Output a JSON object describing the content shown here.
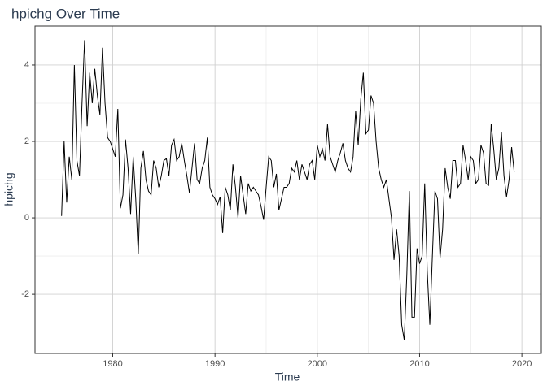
{
  "chart_data": {
    "type": "line",
    "title": "hpichg Over Time",
    "x_label": "Time",
    "y_label": "hpichg",
    "x": [
      1975,
      1975.25,
      1975.5,
      1975.75,
      1976,
      1976.25,
      1976.5,
      1976.75,
      1977,
      1977.25,
      1977.5,
      1977.75,
      1978,
      1978.25,
      1978.5,
      1978.75,
      1979,
      1979.25,
      1979.5,
      1979.75,
      1980,
      1980.25,
      1980.5,
      1980.75,
      1981,
      1981.25,
      1981.5,
      1981.75,
      1982,
      1982.25,
      1982.5,
      1982.75,
      1983,
      1983.25,
      1983.5,
      1983.75,
      1984,
      1984.25,
      1984.5,
      1984.75,
      1985,
      1985.25,
      1985.5,
      1985.75,
      1986,
      1986.25,
      1986.5,
      1986.75,
      1987,
      1987.25,
      1987.5,
      1987.75,
      1988,
      1988.25,
      1988.5,
      1988.75,
      1989,
      1989.25,
      1989.5,
      1989.75,
      1990,
      1990.25,
      1990.5,
      1990.75,
      1991,
      1991.25,
      1991.5,
      1991.75,
      1992,
      1992.25,
      1992.5,
      1992.75,
      1993,
      1993.25,
      1993.5,
      1993.75,
      1994,
      1994.25,
      1994.5,
      1994.75,
      1995,
      1995.25,
      1995.5,
      1995.75,
      1996,
      1996.25,
      1996.5,
      1996.75,
      1997,
      1997.25,
      1997.5,
      1997.75,
      1998,
      1998.25,
      1998.5,
      1998.75,
      1999,
      1999.25,
      1999.5,
      1999.75,
      2000,
      2000.25,
      2000.5,
      2000.75,
      2001,
      2001.25,
      2001.5,
      2001.75,
      2002,
      2002.25,
      2002.5,
      2002.75,
      2003,
      2003.25,
      2003.5,
      2003.75,
      2004,
      2004.25,
      2004.5,
      2004.75,
      2005,
      2005.25,
      2005.5,
      2005.75,
      2006,
      2006.25,
      2006.5,
      2006.75,
      2007,
      2007.25,
      2007.5,
      2007.75,
      2008,
      2008.25,
      2008.5,
      2008.75,
      2009,
      2009.25,
      2009.5,
      2009.75,
      2010,
      2010.25,
      2010.5,
      2010.75,
      2011,
      2011.25,
      2011.5,
      2011.75,
      2012,
      2012.25,
      2012.5,
      2012.75,
      2013,
      2013.25,
      2013.5,
      2013.75,
      2014,
      2014.25,
      2014.5,
      2014.75,
      2015,
      2015.25,
      2015.5,
      2015.75,
      2016,
      2016.25,
      2016.5,
      2016.75,
      2017,
      2017.25,
      2017.5,
      2017.75,
      2018,
      2018.25,
      2018.5,
      2018.75,
      2019,
      2019.25
    ],
    "series": [
      {
        "name": "hpichg",
        "color": "#000000",
        "values": [
          0.05,
          2.0,
          0.4,
          1.6,
          1.0,
          4.0,
          1.5,
          1.1,
          3.0,
          4.65,
          2.4,
          3.8,
          3.0,
          3.9,
          3.2,
          2.7,
          4.45,
          3.0,
          2.1,
          2.0,
          1.8,
          1.6,
          2.85,
          0.25,
          0.6,
          2.05,
          1.3,
          0.1,
          1.6,
          0.5,
          -0.95,
          1.3,
          1.75,
          1.0,
          0.7,
          0.6,
          1.5,
          1.3,
          0.8,
          1.1,
          1.5,
          1.55,
          1.1,
          1.9,
          2.05,
          1.5,
          1.6,
          1.95,
          1.5,
          1.1,
          0.65,
          1.3,
          1.95,
          1.0,
          0.9,
          1.3,
          1.5,
          2.1,
          0.8,
          0.6,
          0.5,
          0.35,
          0.55,
          -0.4,
          0.8,
          0.6,
          0.2,
          1.4,
          0.8,
          0.0,
          1.1,
          0.6,
          0.1,
          0.9,
          0.7,
          0.8,
          0.7,
          0.6,
          0.3,
          -0.05,
          0.8,
          1.6,
          1.5,
          0.8,
          1.15,
          0.2,
          0.5,
          0.8,
          0.8,
          0.9,
          1.3,
          1.2,
          1.5,
          1.0,
          1.4,
          1.2,
          1.0,
          1.4,
          1.5,
          1.0,
          1.9,
          1.6,
          1.8,
          1.5,
          2.45,
          1.6,
          1.4,
          1.2,
          1.5,
          1.7,
          1.95,
          1.5,
          1.3,
          1.2,
          1.6,
          2.8,
          1.9,
          3.1,
          3.8,
          2.2,
          2.3,
          3.2,
          3.0,
          2.0,
          1.3,
          1.0,
          0.8,
          1.0,
          0.5,
          0.0,
          -1.1,
          -0.3,
          -1.0,
          -2.8,
          -3.2,
          -1.5,
          0.7,
          -2.6,
          -2.6,
          -0.8,
          -1.2,
          -1.0,
          0.9,
          -1.4,
          -2.8,
          -1.0,
          0.7,
          0.5,
          -1.05,
          -0.3,
          1.3,
          0.8,
          0.5,
          1.5,
          1.5,
          0.8,
          0.9,
          1.9,
          1.5,
          1.0,
          1.6,
          1.5,
          0.9,
          1.0,
          1.9,
          1.7,
          0.9,
          0.85,
          2.45,
          1.8,
          1.0,
          1.3,
          2.25,
          1.1,
          0.55,
          1.0,
          1.85,
          1.2
        ]
      }
    ],
    "xlim": [
      1972.4,
      2021.9
    ],
    "xticks": [
      1980,
      1990,
      2000,
      2010,
      2020
    ],
    "ylim": [
      -3.55,
      5.02
    ],
    "yticks": [
      -2,
      0,
      2,
      4
    ],
    "grid": true
  }
}
